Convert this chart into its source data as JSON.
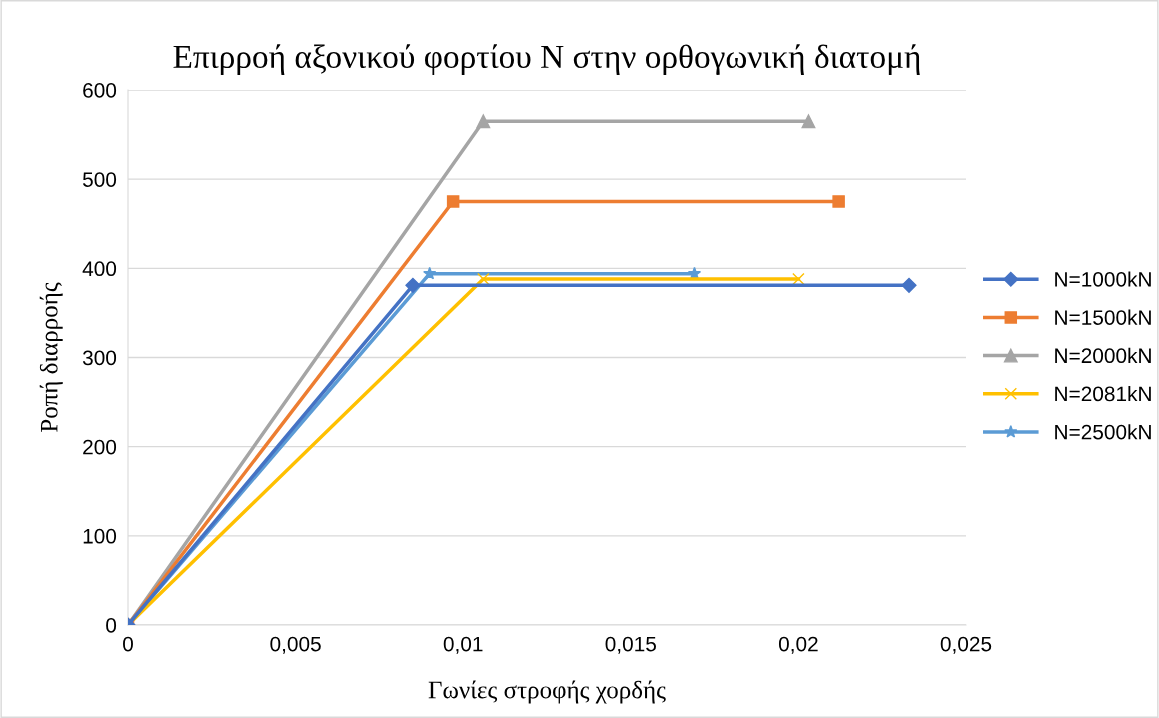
{
  "chart_data": {
    "type": "line",
    "title": "Επιρροή αξονικού φορτίου N στην ορθογωνική διατομή",
    "xlabel": "Γωνίες στροφής χορδής",
    "ylabel": "Ροπή διαρροής",
    "xlim": [
      0,
      0.025
    ],
    "ylim": [
      0,
      600
    ],
    "xticks": [
      0,
      {
        "value": 0.005,
        "label": "0,005"
      },
      {
        "value": 0.01,
        "label": "0,01"
      },
      {
        "value": 0.015,
        "label": "0,015"
      },
      {
        "value": 0.02,
        "label": "0,02"
      },
      {
        "value": 0.025,
        "label": "0,025"
      }
    ],
    "yticks": [
      0,
      100,
      200,
      300,
      400,
      500,
      600
    ],
    "grid": "y",
    "legend": "right",
    "series": [
      {
        "name": "N=1000kN",
        "color": "#4472c4",
        "marker": "diamond",
        "x": [
          0,
          0.0085,
          0.0233
        ],
        "values": [
          0,
          381,
          381
        ]
      },
      {
        "name": "N=1500kN",
        "color": "#ed7d31",
        "marker": "square",
        "x": [
          0,
          0.0097,
          0.0212
        ],
        "values": [
          0,
          475,
          475
        ]
      },
      {
        "name": "N=2000kN",
        "color": "#a5a5a5",
        "marker": "triangle",
        "x": [
          0,
          0.0106,
          0.0203
        ],
        "values": [
          0,
          565,
          565
        ]
      },
      {
        "name": "N=2081kN",
        "color": "#ffc000",
        "marker": "cross",
        "x": [
          0,
          0.0106,
          0.02
        ],
        "values": [
          0,
          388,
          388
        ]
      },
      {
        "name": "N=2500kN",
        "color": "#5b9bd5",
        "marker": "star",
        "x": [
          0,
          0.009,
          0.0169
        ],
        "values": [
          0,
          394,
          394
        ]
      }
    ]
  }
}
